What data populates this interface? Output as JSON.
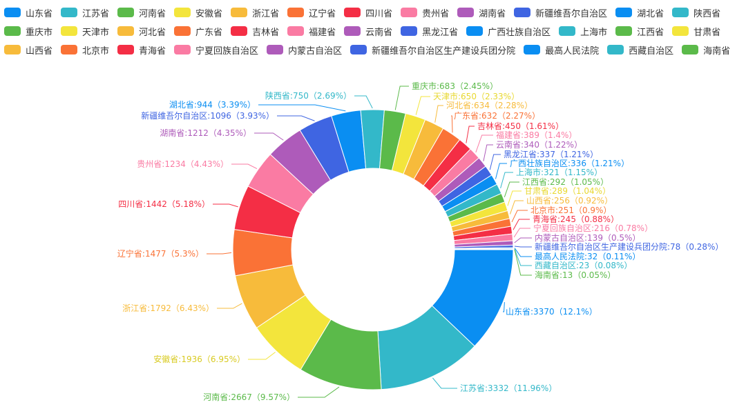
{
  "chart_data": {
    "type": "pie",
    "title": "",
    "categories": [
      "山东省",
      "江苏省",
      "河南省",
      "安徽省",
      "浙江省",
      "辽宁省",
      "四川省",
      "贵州省",
      "湖南省",
      "新疆维吾尔自治区",
      "湖北省",
      "陕西省",
      "重庆市",
      "天津市",
      "河北省",
      "广东省",
      "吉林省",
      "福建省",
      "云南省",
      "黑龙江省",
      "广西壮族自治区",
      "上海市",
      "江西省",
      "甘肃省",
      "山西省",
      "北京市",
      "青海省",
      "宁夏回族自治区",
      "内蒙古自治区",
      "新疆维吾尔自治区生产建设兵团分院",
      "最高人民法院",
      "西藏自治区",
      "海南省"
    ],
    "values": [
      3370,
      3332,
      2667,
      1936,
      1792,
      1477,
      1442,
      1234,
      1212,
      1096,
      944,
      750,
      683,
      650,
      634,
      632,
      450,
      389,
      340,
      337,
      336,
      321,
      292,
      289,
      256,
      251,
      245,
      216,
      139,
      78,
      32,
      23,
      13
    ],
    "percents": [
      "12.1%",
      "11.96%",
      "9.57%",
      "6.95%",
      "6.43%",
      "5.3%",
      "5.18%",
      "4.43%",
      "4.35%",
      "3.93%",
      "3.39%",
      "2.69%",
      "2.45%",
      "2.33%",
      "2.28%",
      "2.27%",
      "1.61%",
      "1.4%",
      "1.22%",
      "1.21%",
      "1.21%",
      "1.15%",
      "1.05%",
      "1.04%",
      "0.92%",
      "0.9%",
      "0.88%",
      "0.78%",
      "0.5%",
      "0.28%",
      "0.11%",
      "0.08%",
      "0.05%"
    ],
    "legend_position": "top",
    "colors": [
      "#0a8ef2",
      "#33b8c9",
      "#5bba4a",
      "#f3e53c",
      "#f7bb3b",
      "#fa7236",
      "#f42e45",
      "#fa7ba3",
      "#ae5bba",
      "#3f65e2",
      "#0a8ef2",
      "#33b8c9",
      "#5bba4a",
      "#f3e53c",
      "#f7bb3b",
      "#fa7236",
      "#f42e45",
      "#fa7ba3",
      "#ae5bba",
      "#3f65e2",
      "#0a8ef2",
      "#33b8c9",
      "#5bba4a",
      "#f3e53c",
      "#f7bb3b",
      "#fa7236",
      "#f42e45",
      "#fa7ba3",
      "#ae5bba",
      "#3f65e2",
      "#0a8ef2",
      "#33b8c9",
      "#5bba4a"
    ]
  }
}
